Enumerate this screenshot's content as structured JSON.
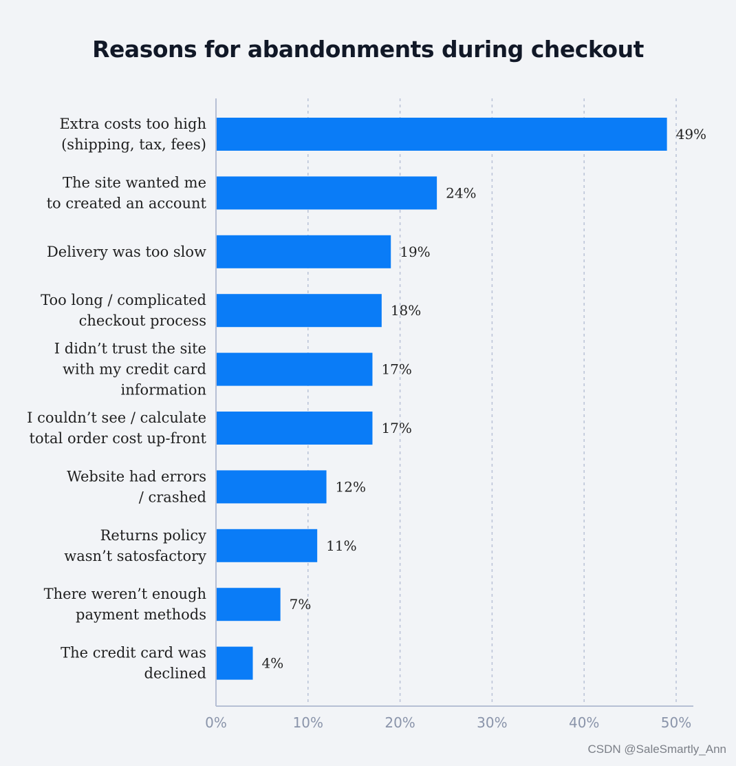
{
  "chart_data": {
    "type": "bar",
    "orientation": "horizontal",
    "title": "Reasons for abandonments during checkout",
    "categories": [
      [
        "Extra costs too high",
        "(shipping, tax, fees)"
      ],
      [
        "The site wanted me",
        "to created an account"
      ],
      [
        "Delivery was too slow"
      ],
      [
        "Too long / complicated",
        "checkout process"
      ],
      [
        "I didn’t trust the site",
        "with my credit card",
        "information"
      ],
      [
        "I couldn’t see / calculate",
        "total order cost up-front"
      ],
      [
        "Website had errors",
        "/ crashed"
      ],
      [
        "Returns policy",
        "wasn’t satosfactory"
      ],
      [
        "There weren’t enough",
        "payment methods"
      ],
      [
        "The credit card was",
        "declined"
      ]
    ],
    "values": [
      49,
      24,
      19,
      18,
      17,
      17,
      12,
      11,
      7,
      4
    ],
    "value_labels": [
      "49%",
      "24%",
      "19%",
      "18%",
      "17%",
      "17%",
      "12%",
      "11%",
      "7%",
      "4%"
    ],
    "xticks": [
      0,
      10,
      20,
      30,
      40,
      50
    ],
    "xtick_labels": [
      "0%",
      "10%",
      "20%",
      "30%",
      "40%",
      "50%"
    ],
    "xlim": [
      0,
      50
    ],
    "grid": "vertical-dashed",
    "legend": "none",
    "bar_color": "#0a7cf7",
    "axis_color": "#b6bfd4",
    "grid_color": "#b8c1d6"
  },
  "watermark": "CSDN @SaleSmartly_Ann"
}
